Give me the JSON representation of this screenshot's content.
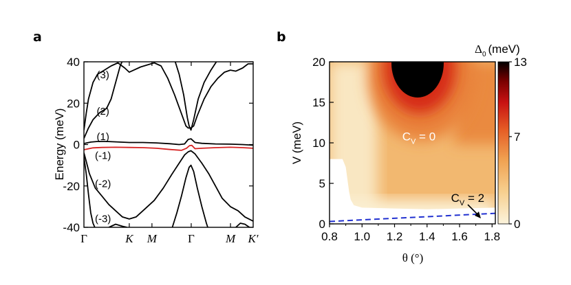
{
  "colors": {
    "bands": "#000000",
    "flat_band": "#d62020",
    "transition_line": "#1f2fd0",
    "colormap": [
      "#fbf3dc",
      "#f7cf8e",
      "#f0a050",
      "#e55d25",
      "#c81212",
      "#7a0000",
      "#000000"
    ]
  },
  "chart_data": [
    {
      "panel": "a",
      "type": "line",
      "ylabel": "Energy (meV)",
      "ylim": [
        -40,
        40
      ],
      "yticks": [
        40,
        20,
        0,
        -20,
        -40
      ],
      "xticks": [
        {
          "label": "Γ",
          "x": 0.0
        },
        {
          "label": "K",
          "x": 1.0
        },
        {
          "label": "M",
          "x": 1.5
        },
        {
          "label": "Γ",
          "x": 2.366
        },
        {
          "label": "M",
          "x": 3.232
        },
        {
          "label": "K′",
          "x": 3.732
        }
      ],
      "xlim": [
        0,
        3.732
      ],
      "band_labels": [
        "(3)",
        "(2)",
        "(1)",
        "(-1)",
        "(-2)",
        "(-3)"
      ],
      "series": [
        {
          "name": "(3)",
          "color": "black",
          "points": [
            [
              0.0,
              7
            ],
            [
              0.05,
              15
            ],
            [
              0.1,
              22
            ],
            [
              0.2,
              30
            ],
            [
              0.3,
              34
            ],
            [
              0.45,
              36
            ],
            [
              0.6,
              38
            ],
            [
              0.75,
              39.5
            ],
            [
              0.9,
              37
            ],
            [
              1.0,
              35
            ],
            [
              1.1,
              36
            ],
            [
              1.25,
              37.5
            ],
            [
              1.4,
              38.5
            ],
            [
              1.55,
              39.5
            ],
            [
              1.7,
              38
            ],
            [
              1.85,
              32
            ],
            [
              2.0,
              24
            ],
            [
              2.15,
              15
            ],
            [
              2.25,
              9
            ],
            [
              2.3,
              8
            ],
            [
              2.36,
              8
            ],
            [
              2.42,
              9
            ],
            [
              2.5,
              14
            ],
            [
              2.65,
              22
            ],
            [
              2.8,
              28
            ],
            [
              2.95,
              32
            ],
            [
              3.1,
              35
            ],
            [
              3.23,
              36
            ],
            [
              3.35,
              35.5
            ],
            [
              3.5,
              37
            ],
            [
              3.62,
              39
            ],
            [
              3.73,
              39
            ]
          ]
        },
        {
          "name": "(2)",
          "color": "black",
          "points": [
            [
              0.0,
              3
            ],
            [
              0.1,
              8
            ],
            [
              0.2,
              12
            ],
            [
              0.35,
              15.5
            ],
            [
              0.5,
              17.5
            ],
            [
              0.6,
              22
            ],
            [
              0.7,
              30
            ],
            [
              0.8,
              38
            ],
            [
              0.86,
              41
            ]
          ]
        },
        {
          "name": "(2)",
          "color": "black",
          "points": [
            [
              2.0,
              41
            ],
            [
              2.1,
              34
            ],
            [
              2.2,
              24
            ],
            [
              2.28,
              13
            ],
            [
              2.32,
              9
            ],
            [
              2.36,
              7
            ],
            [
              2.42,
              12
            ],
            [
              2.52,
              22
            ],
            [
              2.65,
              30
            ],
            [
              2.8,
              36
            ],
            [
              2.92,
              40
            ],
            [
              2.96,
              41
            ]
          ]
        },
        {
          "name": "(1)",
          "color": "black",
          "points": [
            [
              0.0,
              0.5
            ],
            [
              0.15,
              1.2
            ],
            [
              0.3,
              1.5
            ],
            [
              0.5,
              1.5
            ],
            [
              0.8,
              1.2
            ],
            [
              1.0,
              1.0
            ],
            [
              1.3,
              1.0
            ],
            [
              1.6,
              0.8
            ],
            [
              1.9,
              0.4
            ],
            [
              2.1,
              0.0
            ],
            [
              2.22,
              0.3
            ],
            [
              2.3,
              2.5
            ],
            [
              2.36,
              2.8
            ],
            [
              2.45,
              1.0
            ],
            [
              2.6,
              0.6
            ],
            [
              2.9,
              0.3
            ],
            [
              3.23,
              0.2
            ],
            [
              3.5,
              0.0
            ],
            [
              3.73,
              -0.3
            ]
          ]
        },
        {
          "name": "(-1)",
          "color": "red",
          "points": [
            [
              0.0,
              -2.5
            ],
            [
              0.2,
              -1.6
            ],
            [
              0.4,
              -1.4
            ],
            [
              0.7,
              -1.3
            ],
            [
              1.0,
              -1.4
            ],
            [
              1.3,
              -1.5
            ],
            [
              1.6,
              -1.8
            ],
            [
              1.9,
              -2.4
            ],
            [
              2.15,
              -2.8
            ],
            [
              2.26,
              -1.8
            ],
            [
              2.33,
              -0.5
            ],
            [
              2.38,
              -0.4
            ],
            [
              2.45,
              -2.0
            ],
            [
              2.6,
              -1.8
            ],
            [
              2.9,
              -1.5
            ],
            [
              3.23,
              -1.3
            ],
            [
              3.5,
              -1.5
            ],
            [
              3.73,
              -1.8
            ]
          ]
        },
        {
          "name": "(-2)",
          "color": "black",
          "points": [
            [
              0.0,
              -4
            ],
            [
              0.05,
              -8
            ],
            [
              0.12,
              -14
            ],
            [
              0.25,
              -21
            ],
            [
              0.4,
              -25
            ],
            [
              0.55,
              -29
            ],
            [
              0.7,
              -32
            ],
            [
              0.85,
              -35
            ],
            [
              1.0,
              -36
            ],
            [
              1.15,
              -35
            ],
            [
              1.35,
              -31
            ],
            [
              1.55,
              -27
            ],
            [
              1.75,
              -21
            ],
            [
              1.95,
              -14
            ],
            [
              2.1,
              -9
            ],
            [
              2.22,
              -5
            ],
            [
              2.3,
              -3.5
            ],
            [
              2.36,
              -3
            ],
            [
              2.45,
              -4.5
            ],
            [
              2.6,
              -9
            ],
            [
              2.75,
              -14
            ],
            [
              2.9,
              -20
            ],
            [
              3.05,
              -26
            ],
            [
              3.23,
              -30
            ],
            [
              3.4,
              -32
            ],
            [
              3.55,
              -35
            ],
            [
              3.73,
              -37
            ]
          ]
        },
        {
          "name": "(-3)",
          "color": "black",
          "points": [
            [
              0.0,
              -6
            ],
            [
              0.05,
              -14
            ],
            [
              0.1,
              -24
            ],
            [
              0.15,
              -33
            ],
            [
              0.2,
              -38
            ],
            [
              0.24,
              -40
            ]
          ]
        },
        {
          "name": "(-3)",
          "color": "black",
          "points": [
            [
              1.95,
              -40
            ],
            [
              2.05,
              -33
            ],
            [
              2.15,
              -25
            ],
            [
              2.25,
              -16
            ],
            [
              2.32,
              -11
            ],
            [
              2.36,
              -10
            ],
            [
              2.42,
              -13
            ],
            [
              2.5,
              -21
            ],
            [
              2.6,
              -30
            ],
            [
              2.7,
              -38
            ],
            [
              2.73,
              -40
            ]
          ]
        },
        {
          "name": "(-3)",
          "color": "black",
          "points": [
            [
              0.55,
              -40
            ],
            [
              0.7,
              -38.5
            ],
            [
              0.85,
              -39.5
            ],
            [
              0.95,
              -40
            ]
          ]
        },
        {
          "name": "(-3)",
          "color": "black",
          "points": [
            [
              3.35,
              -40
            ],
            [
              3.45,
              -38
            ],
            [
              3.55,
              -38.5
            ],
            [
              3.65,
              -40
            ]
          ]
        }
      ]
    },
    {
      "panel": "b",
      "type": "heatmap",
      "xlabel": "θ (°)",
      "ylabel": "V (meV)",
      "xlim": [
        0.8,
        1.82
      ],
      "ylim": [
        0,
        20
      ],
      "xticks": [
        0.8,
        1.0,
        1.2,
        1.4,
        1.6,
        1.8
      ],
      "yticks": [
        0,
        5,
        10,
        15,
        20
      ],
      "colorbar": {
        "title_base": "Δ",
        "title_sub": "0",
        "title_unit": "(meV)",
        "ticks": [
          0,
          7,
          13
        ],
        "range": [
          0,
          13
        ]
      },
      "annotations": [
        {
          "base": "C",
          "sub": "V",
          "rest": " = 0",
          "x": 1.35,
          "y": 10.3
        },
        {
          "base": "C",
          "sub": "V",
          "rest": " = 2",
          "x": 1.65,
          "y": 2.7
        }
      ],
      "phase_boundary": {
        "style": "dashed",
        "points": [
          [
            0.8,
            0.3
          ],
          [
            1.82,
            1.3
          ]
        ]
      },
      "gapless_region": [
        [
          0.8,
          0
        ],
        [
          0.8,
          8.0
        ],
        [
          0.88,
          8.0
        ],
        [
          0.9,
          7.0
        ],
        [
          0.91,
          5.5
        ],
        [
          0.92,
          4.0
        ],
        [
          0.93,
          3.0
        ],
        [
          0.95,
          2.3
        ],
        [
          1.0,
          2.0
        ],
        [
          1.2,
          1.9
        ],
        [
          1.4,
          1.8
        ],
        [
          1.6,
          1.9
        ],
        [
          1.82,
          2.0
        ],
        [
          1.82,
          0
        ]
      ],
      "max_region_center": {
        "x": 1.35,
        "y": 20
      }
    }
  ],
  "labels": {
    "panel_a": "a",
    "panel_b": "b"
  }
}
